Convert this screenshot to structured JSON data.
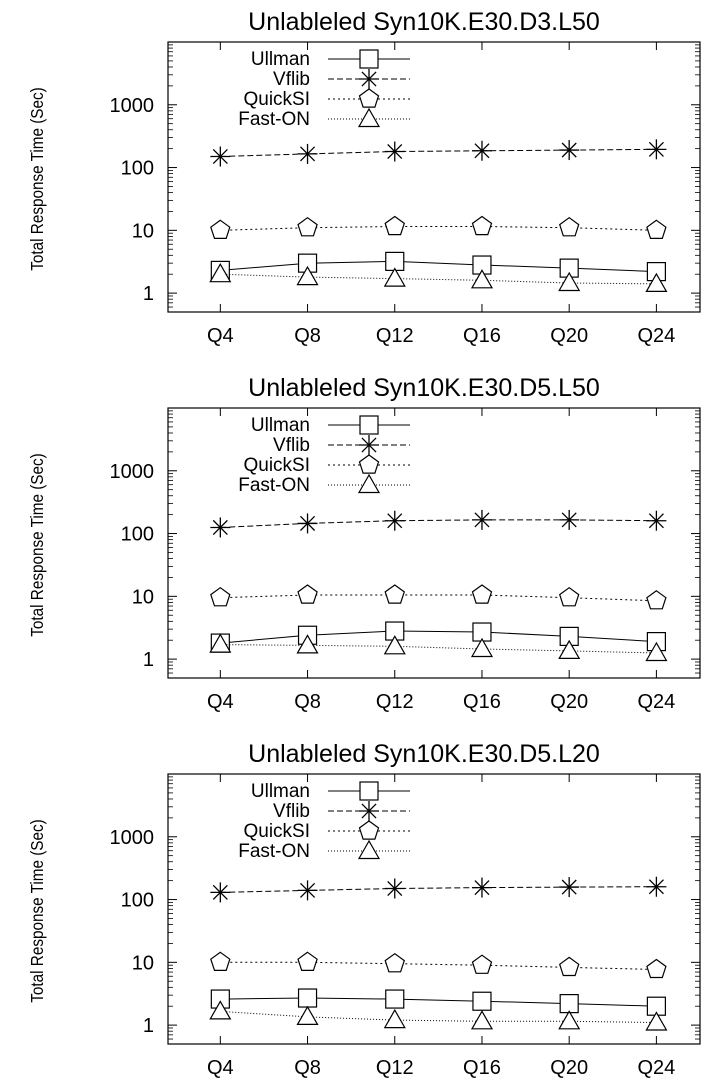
{
  "chart_data": [
    {
      "type": "line",
      "title": "Unlableled Syn10K.E30.D3.L50",
      "xlabel": "",
      "ylabel": "Total Response Time (Sec)",
      "yscale": "log",
      "ylim": [
        0.5,
        10000
      ],
      "yticks": [
        1,
        10,
        100,
        1000
      ],
      "ytick_labels": [
        "1",
        "10",
        "100",
        "1000"
      ],
      "categories": [
        "Q4",
        "Q8",
        "Q12",
        "Q16",
        "Q20",
        "Q24"
      ],
      "legend_position": "top-left",
      "series": [
        {
          "name": "Ullman",
          "marker": "square",
          "dash": "solid",
          "values": [
            2.3,
            3.0,
            3.2,
            2.8,
            2.5,
            2.2
          ]
        },
        {
          "name": "Vflib",
          "marker": "star",
          "dash": "dashed",
          "values": [
            150,
            165,
            180,
            185,
            190,
            195
          ]
        },
        {
          "name": "QuickSI",
          "marker": "pentagon",
          "dash": "dotted",
          "values": [
            10,
            11,
            11.5,
            11.5,
            11,
            10
          ]
        },
        {
          "name": "Fast-ON",
          "marker": "triangle",
          "dash": "dotted-fine",
          "values": [
            2.0,
            1.8,
            1.7,
            1.6,
            1.45,
            1.4
          ]
        }
      ]
    },
    {
      "type": "line",
      "title": "Unlableled Syn10K.E30.D5.L50",
      "xlabel": "",
      "ylabel": "Total Response Time (Sec)",
      "yscale": "log",
      "ylim": [
        0.5,
        10000
      ],
      "yticks": [
        1,
        10,
        100,
        1000
      ],
      "ytick_labels": [
        "1",
        "10",
        "100",
        "1000"
      ],
      "categories": [
        "Q4",
        "Q8",
        "Q12",
        "Q16",
        "Q20",
        "Q24"
      ],
      "legend_position": "top-left",
      "series": [
        {
          "name": "Ullman",
          "marker": "square",
          "dash": "solid",
          "values": [
            1.8,
            2.4,
            2.8,
            2.7,
            2.3,
            1.9
          ]
        },
        {
          "name": "Vflib",
          "marker": "star",
          "dash": "dashed",
          "values": [
            125,
            145,
            160,
            165,
            165,
            160
          ]
        },
        {
          "name": "QuickSI",
          "marker": "pentagon",
          "dash": "dotted",
          "values": [
            9.5,
            10.5,
            10.5,
            10.5,
            9.5,
            8.5
          ]
        },
        {
          "name": "Fast-ON",
          "marker": "triangle",
          "dash": "dotted-fine",
          "values": [
            1.7,
            1.65,
            1.6,
            1.45,
            1.35,
            1.25
          ]
        }
      ]
    },
    {
      "type": "line",
      "title": "Unlableled Syn10K.E30.D5.L20",
      "xlabel": "",
      "ylabel": "Total Response Time (Sec)",
      "yscale": "log",
      "ylim": [
        0.5,
        10000
      ],
      "yticks": [
        1,
        10,
        100,
        1000
      ],
      "ytick_labels": [
        "1",
        "10",
        "100",
        "1000"
      ],
      "categories": [
        "Q4",
        "Q8",
        "Q12",
        "Q16",
        "Q20",
        "Q24"
      ],
      "legend_position": "top-left",
      "series": [
        {
          "name": "Ullman",
          "marker": "square",
          "dash": "solid",
          "values": [
            2.6,
            2.7,
            2.6,
            2.4,
            2.2,
            2.0
          ]
        },
        {
          "name": "Vflib",
          "marker": "star",
          "dash": "dashed",
          "values": [
            130,
            140,
            150,
            155,
            158,
            160
          ]
        },
        {
          "name": "QuickSI",
          "marker": "pentagon",
          "dash": "dotted",
          "values": [
            10,
            10,
            9.5,
            9.0,
            8.3,
            7.7
          ]
        },
        {
          "name": "Fast-ON",
          "marker": "triangle",
          "dash": "dotted-fine",
          "values": [
            1.65,
            1.35,
            1.2,
            1.15,
            1.15,
            1.1
          ]
        }
      ]
    }
  ]
}
